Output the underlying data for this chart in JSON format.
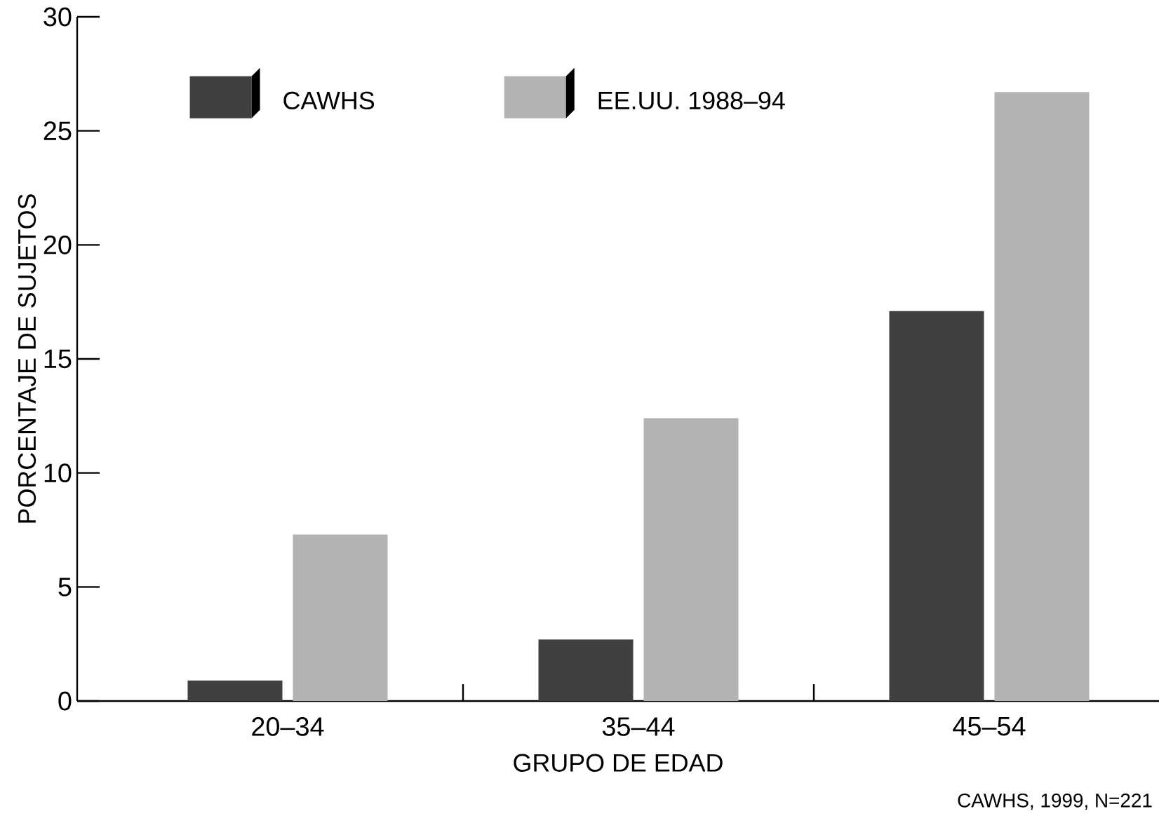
{
  "chart_data": {
    "type": "bar",
    "xlabel": "GRUPO DE EDAD",
    "ylabel": "PORCENTAJE DE SUJETOS",
    "categories": [
      "20–34",
      "35–44",
      "45–54"
    ],
    "series": [
      {
        "name": "CAWHS",
        "color": "#404040",
        "values": [
          0.9,
          2.7,
          17.1
        ]
      },
      {
        "name": "EE.UU. 1988–94",
        "color": "#b3b3b3",
        "values": [
          7.3,
          12.4,
          26.7
        ]
      }
    ],
    "ylim": [
      0,
      30
    ],
    "yticks": [
      0,
      5,
      10,
      15,
      20,
      25,
      30
    ],
    "legend": "top left",
    "annotations": [
      "CAWHS, 1999, N=221"
    ]
  }
}
